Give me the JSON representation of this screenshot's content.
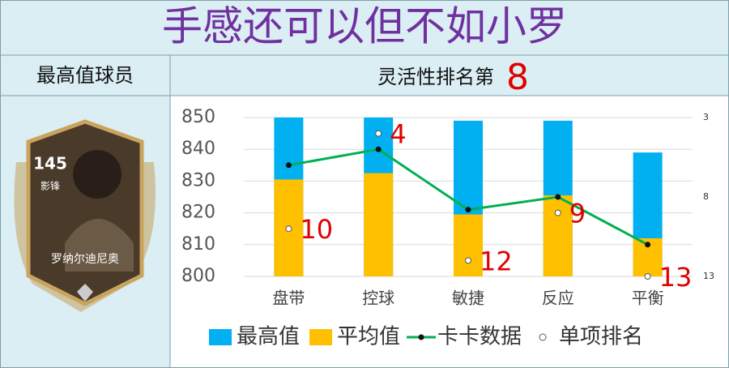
{
  "header": {
    "title": "手感还可以但不如小罗"
  },
  "left_header": {
    "text": "最高值球员"
  },
  "right_header": {
    "text": "灵活性排名第",
    "rank": 8
  },
  "player_card": {
    "rating": 145,
    "position": "影锋",
    "name": "罗纳尔迪尼奥"
  },
  "chart_data": {
    "type": "bar",
    "categories": [
      "盘带",
      "控球",
      "敏捷",
      "反应",
      "平衡"
    ],
    "series": [
      {
        "name": "最高值",
        "color": "#00b0f0",
        "type": "bar",
        "values": [
          850,
          850,
          849,
          849,
          839
        ]
      },
      {
        "name": "平均值",
        "color": "#ffc000",
        "type": "bar",
        "values": [
          830.5,
          832.5,
          819.5,
          825.5,
          812
        ]
      },
      {
        "name": "卡卡数据",
        "color": "#00b050",
        "type": "line",
        "values": [
          835,
          840,
          821,
          825,
          810
        ]
      },
      {
        "name": "单项排名",
        "color": "#ffffff",
        "type": "scatter",
        "axis": "y2",
        "values": [
          10,
          4,
          12,
          9,
          13
        ]
      }
    ],
    "ylim": [
      800,
      850
    ],
    "yticks": [
      800,
      810,
      820,
      830,
      840,
      850
    ],
    "y2lim": [
      13,
      3
    ],
    "y2ticks": [
      3,
      8,
      13
    ],
    "grid": true,
    "legend": "bottom"
  }
}
